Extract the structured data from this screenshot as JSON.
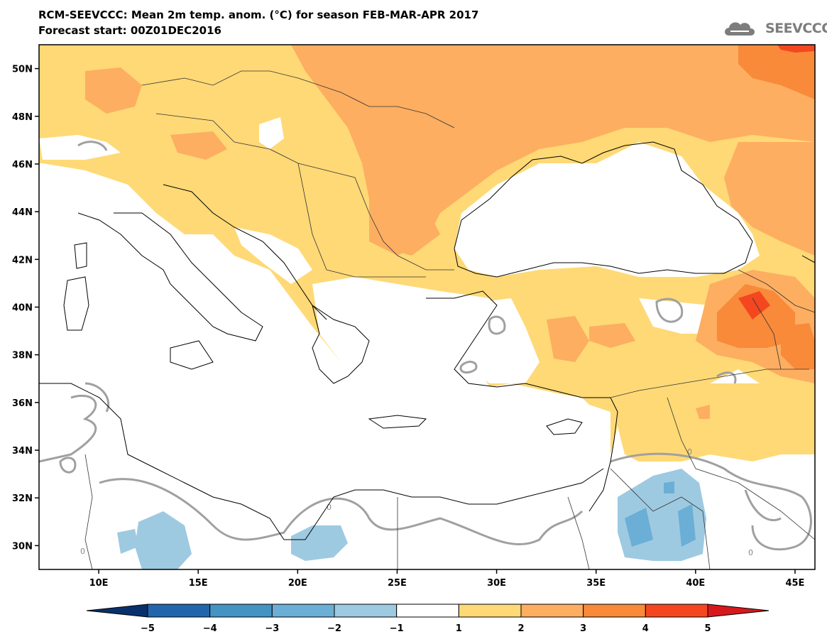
{
  "title_line1": "RCM-SEEVCCC: Mean 2m temp. anom. (°C) for season FEB-MAR-APR 2017",
  "title_line2": "Forecast start: 00Z01DEC2016",
  "logo_text": "SEEVCCC",
  "map_extent": {
    "lon_min": 7,
    "lon_max": 46,
    "lat_min": 29,
    "lat_max": 51
  },
  "lat_labels": [
    {
      "lat": 50,
      "label": "50N"
    },
    {
      "lat": 48,
      "label": "48N"
    },
    {
      "lat": 46,
      "label": "46N"
    },
    {
      "lat": 44,
      "label": "44N"
    },
    {
      "lat": 42,
      "label": "42N"
    },
    {
      "lat": 40,
      "label": "40N"
    },
    {
      "lat": 38,
      "label": "38N"
    },
    {
      "lat": 36,
      "label": "36N"
    },
    {
      "lat": 34,
      "label": "34N"
    },
    {
      "lat": 32,
      "label": "32N"
    },
    {
      "lat": 30,
      "label": "30N"
    }
  ],
  "lon_labels": [
    {
      "lon": 10,
      "label": "10E"
    },
    {
      "lon": 15,
      "label": "15E"
    },
    {
      "lon": 20,
      "label": "20E"
    },
    {
      "lon": 25,
      "label": "25E"
    },
    {
      "lon": 30,
      "label": "30E"
    },
    {
      "lon": 35,
      "label": "35E"
    },
    {
      "lon": 40,
      "label": "40E"
    },
    {
      "lon": 45,
      "label": "45E"
    }
  ],
  "colorbar": {
    "ticks": [
      "−5",
      "−4",
      "−3",
      "−2",
      "−1",
      "1",
      "2",
      "3",
      "4",
      "5"
    ],
    "colors": [
      "#08306b",
      "#2166ac",
      "#4393c3",
      "#6baed6",
      "#9ecae1",
      "#ffffff",
      "#fed976",
      "#fdae61",
      "#f98a3a",
      "#f4471f",
      "#d7191c"
    ]
  },
  "contour_label": "0",
  "colors": {
    "frame": "#000000",
    "contour": "#a0a0a0",
    "coast": "#000000"
  }
}
